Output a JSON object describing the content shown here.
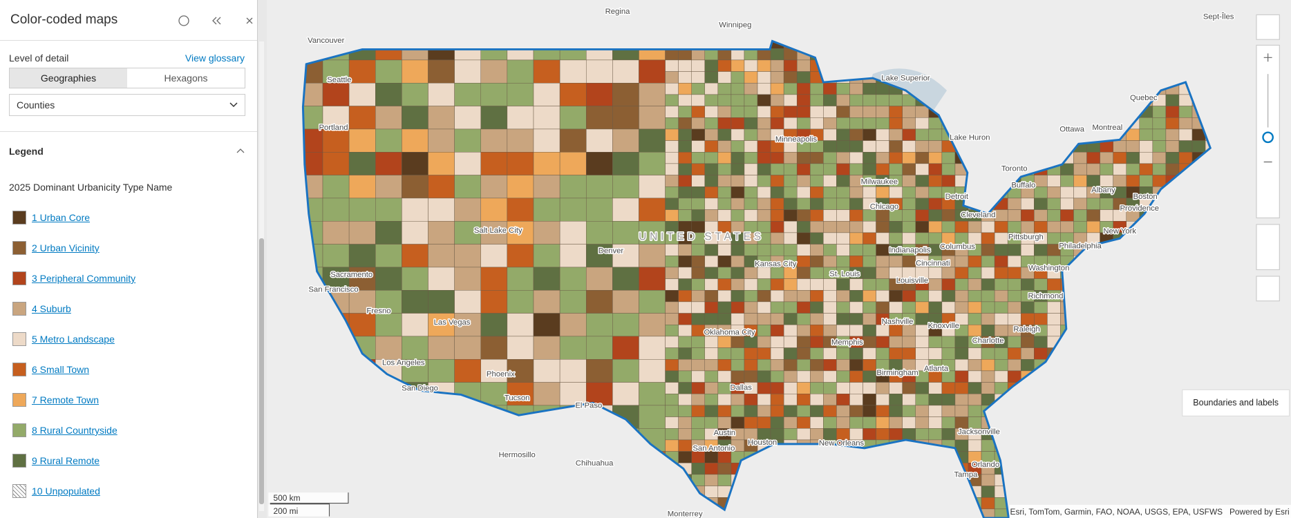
{
  "panel": {
    "title": "Color-coded maps",
    "level_of_detail": "Level of detail",
    "view_glossary": "View glossary",
    "tabs": [
      "Geographies",
      "Hexagons"
    ],
    "dropdown": "Counties",
    "legend_heading": "Legend",
    "legend_title": "2025 Dominant Urbanicity Type Name",
    "legend_items": [
      {
        "label": "1 Urban Core",
        "color": "#5a3c1f"
      },
      {
        "label": "2 Urban Vicinity",
        "color": "#8c5f33"
      },
      {
        "label": "3 Peripheral Community",
        "color": "#b2441c"
      },
      {
        "label": "4 Suburb",
        "color": "#c9a57f"
      },
      {
        "label": "5 Metro Landscape",
        "color": "#eddac8"
      },
      {
        "label": "6 Small Town",
        "color": "#c65f1f"
      },
      {
        "label": "7 Remote Town",
        "color": "#eea85a"
      },
      {
        "label": "8 Rural Countryside",
        "color": "#93aa69"
      },
      {
        "label": "9 Rural Remote",
        "color": "#5f7042"
      },
      {
        "label": "10 Unpopulated",
        "color": "hatch"
      }
    ]
  },
  "map": {
    "labels": [
      "Regina",
      "Winnipeg",
      "Vancouver",
      "Seattle",
      "Portland",
      "Sacramento",
      "San Francisco",
      "Fresno",
      "Los Angeles",
      "San Diego",
      "Las Vegas",
      "Phoenix",
      "Tucson",
      "Salt Lake City",
      "Denver",
      "El Paso",
      "Hermosillo",
      "Chihuahua",
      "Monterrey",
      "Dallas",
      "Austin",
      "San Antonio",
      "Houston",
      "Oklahoma City",
      "Kansas City",
      "Minneapolis",
      "Milwaukee",
      "Chicago",
      "Detroit",
      "Cleveland",
      "Pittsburgh",
      "Columbus",
      "Indianapolis",
      "Cincinnati",
      "St. Louis",
      "Louisville",
      "Nashville",
      "Memphis",
      "Knoxville",
      "Charlotte",
      "Raleigh",
      "Atlanta",
      "Birmingham",
      "Jacksonville",
      "Orlando",
      "Tampa",
      "New Orleans",
      "Richmond",
      "Washington",
      "Philadelphia",
      "New York",
      "Boston",
      "Providence",
      "Albany",
      "Buffalo",
      "Toronto",
      "Ottawa",
      "Montreal",
      "Quebec",
      "Sept-Îles",
      "UNITED STATES",
      "Lake Superior",
      "Lake Huron"
    ],
    "scale": [
      "500 km",
      "200 mi"
    ],
    "attribution": "Esri, TomTom, Garmin, FAO, NOAA, USGS, EPA, USFWS",
    "powered_by": "Powered by Esri",
    "tooltip": "Boundaries and labels"
  }
}
